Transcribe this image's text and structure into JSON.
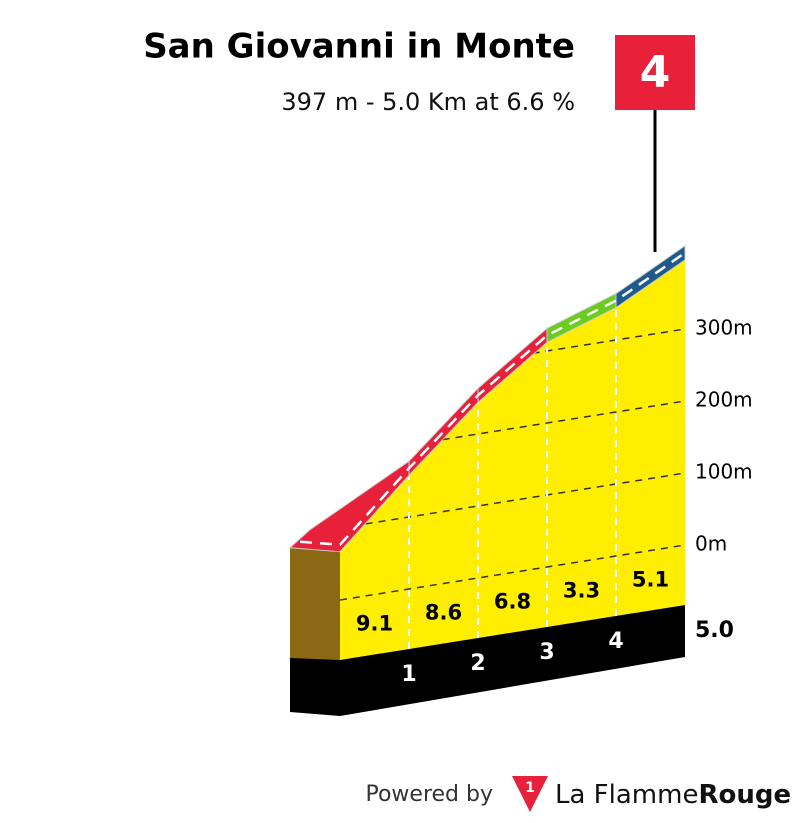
{
  "chart_data": {
    "type": "climb-profile",
    "title": "San Giovanni in Monte",
    "subtitle": "397 m - 5.0 Km at 6.6 %",
    "category": "4",
    "elevations": [
      67,
      158,
      244,
      312,
      345,
      396
    ],
    "gradients": [
      9.1,
      8.6,
      6.8,
      3.3,
      5.1
    ],
    "segment_colors": [
      "#e8203a",
      "#e8203a",
      "#e8203a",
      "#6ccb1f",
      "#1f5a8c"
    ],
    "xlim": [
      0,
      5
    ],
    "xticks": [
      1,
      2,
      3,
      4,
      {
        "value": 5,
        "label": "5.0"
      }
    ],
    "ylim": [
      0,
      400
    ],
    "yticks": [
      {
        "value": 0,
        "label": "0m"
      },
      {
        "value": 100,
        "label": "100m"
      },
      {
        "value": 200,
        "label": "200m"
      },
      {
        "value": 300,
        "label": "300m"
      }
    ],
    "grid": true,
    "footer": {
      "powered_by": "Powered by",
      "brand": "La Flamme",
      "brand_bold": "Rouge"
    }
  }
}
